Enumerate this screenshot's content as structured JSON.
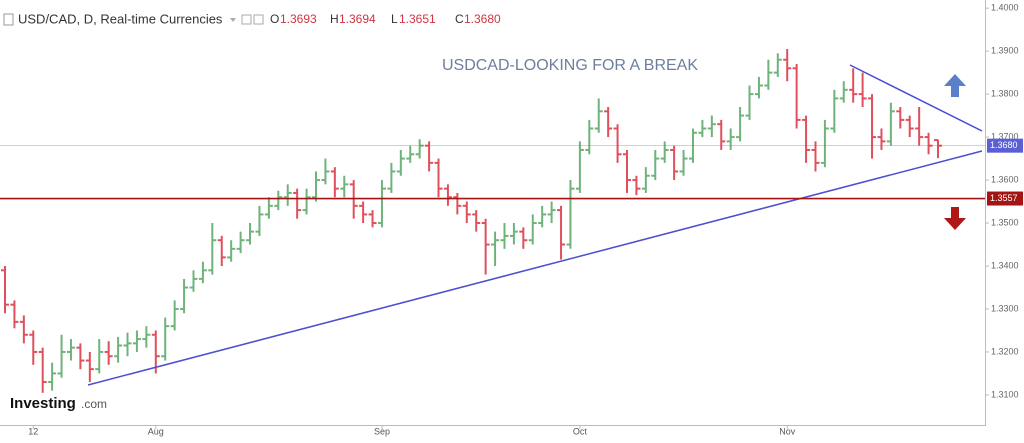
{
  "header": {
    "symbol": "USD/CAD, D, Real-time Currencies",
    "o": "O",
    "h": "H",
    "l": "L",
    "c": "C"
  },
  "chart_data": {
    "type": "ohlc",
    "title": "USDCAD-LOOKING FOR A BREAK",
    "logo": {
      "main": "Investing",
      "suffix": ".com"
    },
    "up_color": "#6fb37b",
    "down_color": "#e0505c",
    "last_labels": {
      "open": "1.3693",
      "high": "1.3694",
      "low": "1.3651",
      "close": "1.3680"
    },
    "categories": [
      null,
      null,
      null,
      "12",
      null,
      null,
      null,
      null,
      null,
      null,
      null,
      null,
      null,
      null,
      null,
      null,
      "Aug",
      null,
      null,
      null,
      null,
      null,
      null,
      null,
      null,
      null,
      null,
      null,
      null,
      null,
      null,
      null,
      null,
      null,
      null,
      null,
      null,
      null,
      null,
      null,
      "Sep",
      null,
      null,
      null,
      null,
      null,
      null,
      null,
      null,
      null,
      null,
      null,
      null,
      null,
      null,
      null,
      null,
      null,
      null,
      null,
      null,
      "Oct",
      null,
      null,
      null,
      null,
      null,
      null,
      null,
      null,
      null,
      null,
      null,
      null,
      null,
      null,
      null,
      null,
      null,
      null,
      null,
      null,
      null,
      "Nov",
      null,
      null,
      null,
      null,
      null,
      null,
      null,
      null,
      null,
      null,
      null,
      null,
      null,
      null,
      null,
      null
    ],
    "open": [
      1.339,
      1.331,
      1.327,
      1.324,
      1.32,
      1.313,
      1.315,
      1.32,
      1.321,
      1.318,
      1.316,
      1.32,
      1.319,
      1.3215,
      1.322,
      1.323,
      1.324,
      1.319,
      1.326,
      1.33,
      1.335,
      1.337,
      1.339,
      1.346,
      1.342,
      1.344,
      1.346,
      1.348,
      1.352,
      1.354,
      1.356,
      1.357,
      1.353,
      1.356,
      1.36,
      1.362,
      1.358,
      1.359,
      1.354,
      1.352,
      1.35,
      1.358,
      1.362,
      1.365,
      1.366,
      1.368,
      1.364,
      1.358,
      1.356,
      1.354,
      1.352,
      1.35,
      1.345,
      1.346,
      1.347,
      1.348,
      1.346,
      1.35,
      1.352,
      1.353,
      1.345,
      1.358,
      1.367,
      1.372,
      1.376,
      1.372,
      1.366,
      1.36,
      1.358,
      1.361,
      1.365,
      1.367,
      1.362,
      1.365,
      1.371,
      1.372,
      1.373,
      1.369,
      1.37,
      1.375,
      1.38,
      1.382,
      1.385,
      1.388,
      1.386,
      1.374,
      1.367,
      1.364,
      1.372,
      1.379,
      1.381,
      1.38,
      1.379,
      1.37,
      1.369,
      1.376,
      1.374,
      1.372,
      1.37,
      1.3693
    ],
    "high": [
      1.34,
      1.332,
      1.3285,
      1.325,
      1.321,
      1.3175,
      1.324,
      1.323,
      1.322,
      1.32,
      1.323,
      1.3225,
      1.3235,
      1.3245,
      1.325,
      1.326,
      1.325,
      1.328,
      1.332,
      1.337,
      1.339,
      1.341,
      1.35,
      1.347,
      1.346,
      1.348,
      1.35,
      1.354,
      1.356,
      1.3575,
      1.359,
      1.358,
      1.358,
      1.362,
      1.365,
      1.363,
      1.361,
      1.36,
      1.355,
      1.353,
      1.36,
      1.364,
      1.367,
      1.368,
      1.3695,
      1.369,
      1.365,
      1.359,
      1.357,
      1.355,
      1.353,
      1.351,
      1.348,
      1.35,
      1.35,
      1.349,
      1.352,
      1.354,
      1.355,
      1.354,
      1.36,
      1.369,
      1.374,
      1.379,
      1.377,
      1.373,
      1.367,
      1.361,
      1.363,
      1.367,
      1.369,
      1.368,
      1.367,
      1.372,
      1.374,
      1.375,
      1.374,
      1.372,
      1.377,
      1.382,
      1.384,
      1.388,
      1.3895,
      1.3905,
      1.387,
      1.375,
      1.369,
      1.374,
      1.381,
      1.383,
      1.386,
      1.385,
      1.38,
      1.372,
      1.378,
      1.377,
      1.375,
      1.377,
      1.371,
      1.3694
    ],
    "low": [
      1.329,
      1.3255,
      1.322,
      1.317,
      1.3105,
      1.311,
      1.314,
      1.318,
      1.316,
      1.313,
      1.315,
      1.317,
      1.3175,
      1.319,
      1.32,
      1.321,
      1.315,
      1.318,
      1.325,
      1.329,
      1.334,
      1.336,
      1.338,
      1.34,
      1.341,
      1.343,
      1.345,
      1.347,
      1.351,
      1.353,
      1.354,
      1.351,
      1.352,
      1.355,
      1.359,
      1.356,
      1.356,
      1.351,
      1.35,
      1.349,
      1.349,
      1.357,
      1.361,
      1.364,
      1.365,
      1.362,
      1.356,
      1.354,
      1.352,
      1.35,
      1.348,
      1.338,
      1.34,
      1.344,
      1.345,
      1.344,
      1.345,
      1.349,
      1.35,
      1.3415,
      1.344,
      1.357,
      1.366,
      1.371,
      1.37,
      1.364,
      1.357,
      1.3565,
      1.357,
      1.36,
      1.364,
      1.36,
      1.361,
      1.364,
      1.37,
      1.37,
      1.367,
      1.367,
      1.369,
      1.374,
      1.379,
      1.381,
      1.384,
      1.383,
      1.372,
      1.364,
      1.362,
      1.363,
      1.371,
      1.378,
      1.378,
      1.377,
      1.365,
      1.367,
      1.368,
      1.372,
      1.37,
      1.368,
      1.366,
      1.3651
    ],
    "close": [
      1.331,
      1.327,
      1.324,
      1.32,
      1.313,
      1.315,
      1.32,
      1.321,
      1.318,
      1.316,
      1.32,
      1.319,
      1.3215,
      1.322,
      1.323,
      1.324,
      1.319,
      1.326,
      1.33,
      1.335,
      1.337,
      1.339,
      1.346,
      1.342,
      1.344,
      1.346,
      1.348,
      1.352,
      1.354,
      1.356,
      1.357,
      1.353,
      1.356,
      1.36,
      1.362,
      1.358,
      1.359,
      1.354,
      1.352,
      1.35,
      1.358,
      1.362,
      1.365,
      1.366,
      1.368,
      1.364,
      1.358,
      1.356,
      1.354,
      1.352,
      1.35,
      1.345,
      1.346,
      1.347,
      1.348,
      1.346,
      1.35,
      1.352,
      1.353,
      1.345,
      1.358,
      1.367,
      1.372,
      1.376,
      1.372,
      1.366,
      1.36,
      1.358,
      1.361,
      1.365,
      1.367,
      1.362,
      1.365,
      1.371,
      1.372,
      1.373,
      1.369,
      1.37,
      1.375,
      1.38,
      1.382,
      1.385,
      1.388,
      1.386,
      1.374,
      1.367,
      1.364,
      1.372,
      1.379,
      1.381,
      1.38,
      1.379,
      1.37,
      1.369,
      1.376,
      1.374,
      1.372,
      1.37,
      1.368,
      1.368
    ],
    "ylim": [
      1.303,
      1.4019
    ],
    "yticks": [
      {
        "value": 1.31,
        "label": "1.3100"
      },
      {
        "value": 1.32,
        "label": "1.3200"
      },
      {
        "value": 1.33,
        "label": "1.3300"
      },
      {
        "value": 1.34,
        "label": "1.3400"
      },
      {
        "value": 1.35,
        "label": "1.3500"
      },
      {
        "value": 1.36,
        "label": "1.3600"
      },
      {
        "value": 1.37,
        "label": "1.3700"
      },
      {
        "value": 1.38,
        "label": "1.3800"
      },
      {
        "value": 1.39,
        "label": "1.3900"
      },
      {
        "value": 1.4,
        "label": "1.4000"
      }
    ],
    "price_lines": [
      {
        "value": 1.368,
        "label": "1.3680",
        "color": "#5b5fd6"
      },
      {
        "value": 1.3557,
        "label": "1.3557",
        "color": "#a31515"
      }
    ],
    "grid": false
  }
}
